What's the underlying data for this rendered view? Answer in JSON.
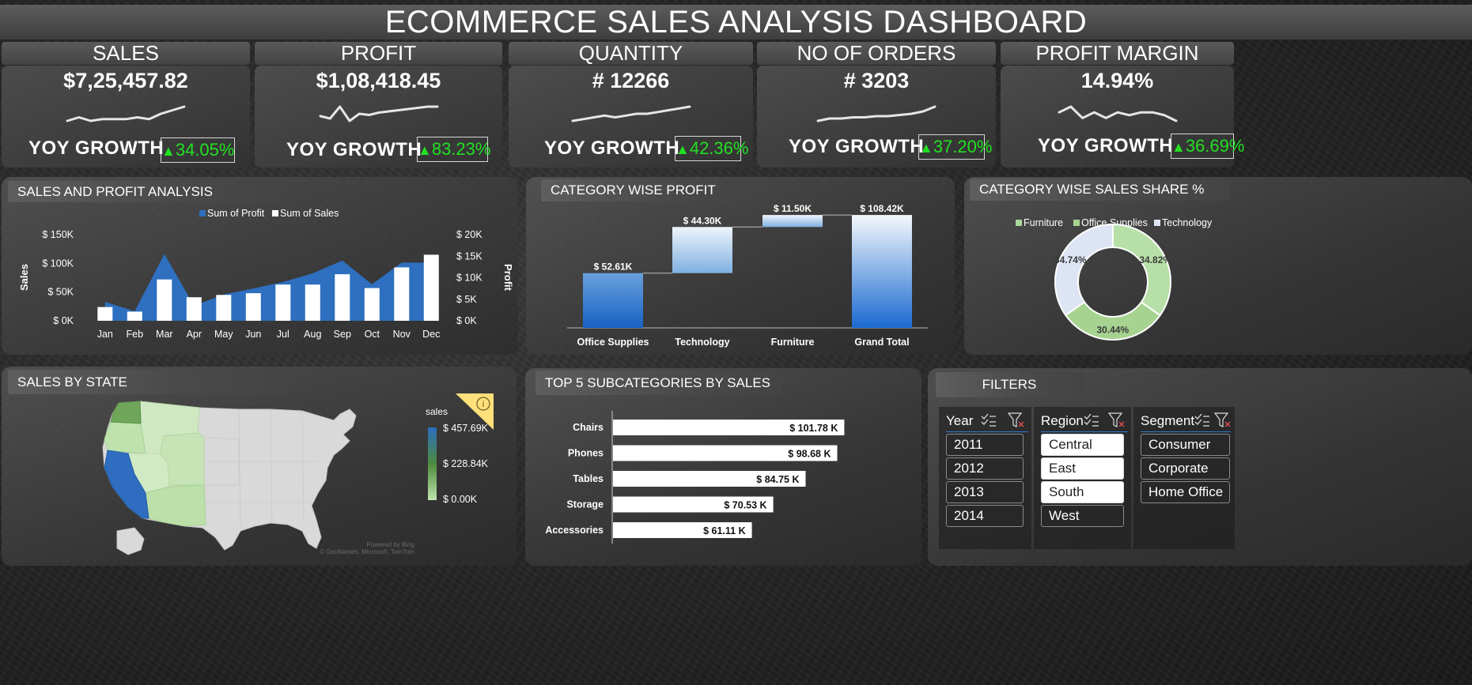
{
  "title": "ECOMMERCE SALES ANALYSIS DASHBOARD",
  "kpis": [
    {
      "label": "SALES",
      "value": "$7,25,457.82",
      "yoy_label": "YOY GROWTH",
      "yoy": "34.05%",
      "trend": [
        3,
        4,
        3,
        3.5,
        3.5,
        3.5,
        4,
        3.5,
        5,
        6,
        7
      ]
    },
    {
      "label": "PROFIT",
      "value": "$1,08,418.45",
      "yoy_label": "YOY GROWTH",
      "yoy": "83.23%",
      "trend": [
        3,
        2,
        7,
        1,
        4,
        3.5,
        4.5,
        5,
        5.5,
        6,
        6.5,
        7,
        7
      ]
    },
    {
      "label": "QUANTITY",
      "value": "# 12266",
      "yoy_label": "YOY GROWTH",
      "yoy": "42.36%",
      "trend": [
        2,
        2.5,
        3,
        3.5,
        3,
        3.5,
        4,
        4,
        4.5,
        5,
        5.5,
        6
      ]
    },
    {
      "label": "NO OF ORDERS",
      "value": "# 3203",
      "yoy_label": "YOY GROWTH",
      "yoy": "37.20%",
      "trend": [
        2,
        3,
        3,
        3.5,
        3.5,
        4,
        4,
        4.5,
        5,
        6,
        8
      ]
    },
    {
      "label": "PROFIT MARGIN",
      "value": "14.94%",
      "yoy_label": "YOY GROWTH",
      "yoy": "36.69%",
      "trend": [
        5,
        6,
        4,
        5,
        4,
        5,
        4.5,
        5,
        5,
        4.5,
        3.5
      ]
    }
  ],
  "colors": {
    "profit": "#2e6fbf",
    "sales": "#ffffff",
    "growth": "#22e022",
    "furniture": "#a8d89b",
    "office": "#a6d490",
    "technology": "#dde4f3"
  },
  "sales_profit": {
    "title": "SALES AND PROFIT ANALYSIS",
    "legend_profit": "Sum of Profit",
    "legend_sales": "Sum of Sales",
    "ylabel_left": "Sales",
    "ylabel_right": "Profit",
    "left_ticks": [
      "$ 150K",
      "$ 100K",
      "$ 50K",
      "$ 0K"
    ],
    "right_ticks": [
      "$ 20K",
      "$ 15K",
      "$ 10K",
      "$ 5K",
      "$ 0K"
    ]
  },
  "category_profit": {
    "title": "CATEGORY WISE PROFIT",
    "steps": [
      {
        "label": "Office Supplies",
        "value_label": "$ 52.61K"
      },
      {
        "label": "Technology",
        "value_label": "$ 44.30K"
      },
      {
        "label": "Furniture",
        "value_label": "$ 11.50K"
      },
      {
        "label": "Grand Total",
        "value_label": "$ 108.42K"
      }
    ]
  },
  "sales_share": {
    "title": "CATEGORY WISE SALES SHARE %",
    "legend": [
      "Furniture",
      "Office Supplies",
      "Technology"
    ],
    "slices": [
      {
        "name": "Furniture",
        "label": "34.82%"
      },
      {
        "name": "Office Supplies",
        "label": "30.44%"
      },
      {
        "name": "Technology",
        "label": "34.74%"
      }
    ]
  },
  "sales_by_state": {
    "title": "SALES BY STATE",
    "legend_title": "sales",
    "legend_ticks": [
      "$ 457.69K",
      "$ 228.84K",
      "$ 0.00K"
    ],
    "attribution": [
      "Powered by Bing",
      "© GeoNames, Microsoft, TomTom"
    ]
  },
  "top_subcategories": {
    "title": "TOP 5 SUBCATEGORIES BY SALES",
    "rows": [
      {
        "name": "Chairs",
        "label": "$ 101.78 K"
      },
      {
        "name": "Phones",
        "label": "$ 98.68 K"
      },
      {
        "name": "Tables",
        "label": "$ 84.75 K"
      },
      {
        "name": "Storage",
        "label": "$ 70.53 K"
      },
      {
        "name": "Accessories",
        "label": "$ 61.11 K"
      }
    ]
  },
  "filters": {
    "title": "FILTERS",
    "year": {
      "label": "Year",
      "options": [
        "2011",
        "2012",
        "2013",
        "2014"
      ]
    },
    "region": {
      "label": "Region",
      "options": [
        "Central",
        "East",
        "South",
        "West"
      ]
    },
    "segment": {
      "label": "Segment",
      "options": [
        "Consumer",
        "Corporate",
        "Home Office"
      ]
    }
  },
  "chart_data": [
    {
      "type": "bar",
      "title": "SALES AND PROFIT ANALYSIS",
      "categories": [
        "Jan",
        "Feb",
        "Mar",
        "Apr",
        "May",
        "Jun",
        "Jul",
        "Aug",
        "Sep",
        "Oct",
        "Nov",
        "Dec"
      ],
      "series": [
        {
          "name": "Sum of Sales",
          "axis": "left",
          "values": [
            24000,
            16000,
            72000,
            41000,
            45000,
            48000,
            63000,
            63000,
            81000,
            57000,
            93000,
            115000
          ]
        },
        {
          "name": "Sum of Profit",
          "type": "area",
          "axis": "right",
          "values": [
            4400,
            2200,
            15500,
            3500,
            6100,
            7500,
            9000,
            11000,
            14000,
            8500,
            13500,
            13500
          ]
        }
      ],
      "ylabel": "Sales",
      "y2label": "Profit",
      "ylim": [
        0,
        150000
      ],
      "y2lim": [
        0,
        20000
      ],
      "legend": "top"
    },
    {
      "type": "bar",
      "subtype": "waterfall",
      "title": "CATEGORY WISE PROFIT",
      "categories": [
        "Office Supplies",
        "Technology",
        "Furniture",
        "Grand Total"
      ],
      "values": [
        52.61,
        44.3,
        11.5,
        108.42
      ],
      "unit": "$K",
      "ylim": [
        0,
        110
      ]
    },
    {
      "type": "pie",
      "subtype": "donut",
      "title": "CATEGORY WISE SALES SHARE %",
      "categories": [
        "Furniture",
        "Office Supplies",
        "Technology"
      ],
      "values": [
        34.82,
        30.44,
        34.74
      ],
      "legend": "top"
    },
    {
      "type": "bar",
      "orientation": "horizontal",
      "title": "TOP 5 SUBCATEGORIES BY SALES",
      "categories": [
        "Chairs",
        "Phones",
        "Tables",
        "Storage",
        "Accessories"
      ],
      "values": [
        101.78,
        98.68,
        84.75,
        70.53,
        61.11
      ],
      "unit": "$K",
      "xlim": [
        0,
        110
      ]
    }
  ]
}
